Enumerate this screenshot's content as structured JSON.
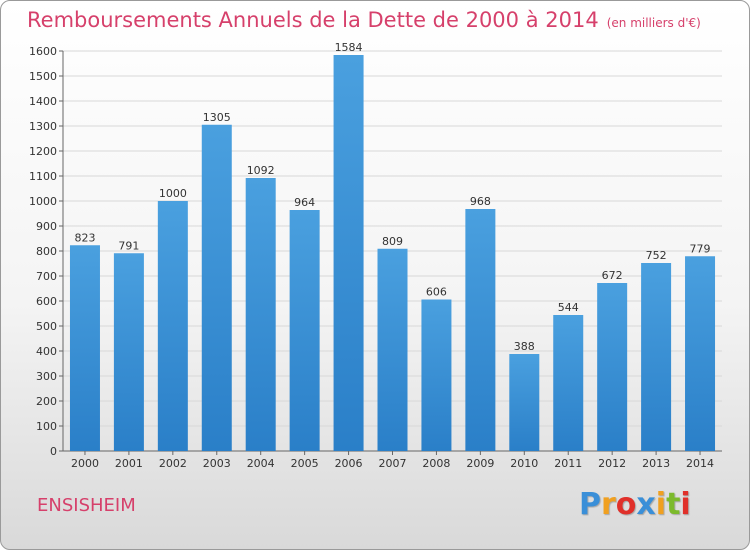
{
  "chart_data": {
    "type": "bar",
    "title": "Remboursements Annuels de la Dette de 2000 à 2014",
    "unit_note": "(en milliers d'€)",
    "categories": [
      "2000",
      "2001",
      "2002",
      "2003",
      "2004",
      "2005",
      "2006",
      "2007",
      "2008",
      "2009",
      "2010",
      "2011",
      "2012",
      "2013",
      "2014"
    ],
    "values": [
      823,
      791,
      1000,
      1305,
      1092,
      964,
      1584,
      809,
      606,
      968,
      388,
      544,
      672,
      752,
      779
    ],
    "data_labels": [
      "823",
      "791",
      "1000",
      "1305",
      "1092",
      "964",
      "1584",
      "809",
      "606",
      "968",
      "388",
      "544",
      "672",
      "752",
      "779"
    ],
    "ylim": [
      0,
      1600
    ],
    "yticks": [
      "0",
      "100",
      "200",
      "300",
      "400",
      "500",
      "600",
      "700",
      "800",
      "900",
      "1000",
      "1100",
      "1200",
      "1300",
      "1400",
      "1500",
      "1600"
    ],
    "ytick_values": [
      0,
      100,
      200,
      300,
      400,
      500,
      600,
      700,
      800,
      900,
      1000,
      1100,
      1200,
      1300,
      1400,
      1500,
      1600
    ],
    "xlabel": "",
    "ylabel": "",
    "grid": true,
    "bar_color": "#4aa0df",
    "bar_color_dark": "#2a7fc8"
  },
  "footer": {
    "city": "ENSISHEIM",
    "logo_letters": [
      "P",
      "r",
      "o",
      "x",
      "i",
      "t",
      "i"
    ],
    "logo_colors": [
      "#3a8fd8",
      "#f0a020",
      "#e0302a",
      "#3a8fd8",
      "#f0a020",
      "#7cba2c",
      "#e0302a"
    ]
  },
  "colors": {
    "accent": "#d6406b",
    "grid": "#d8d8d8"
  }
}
